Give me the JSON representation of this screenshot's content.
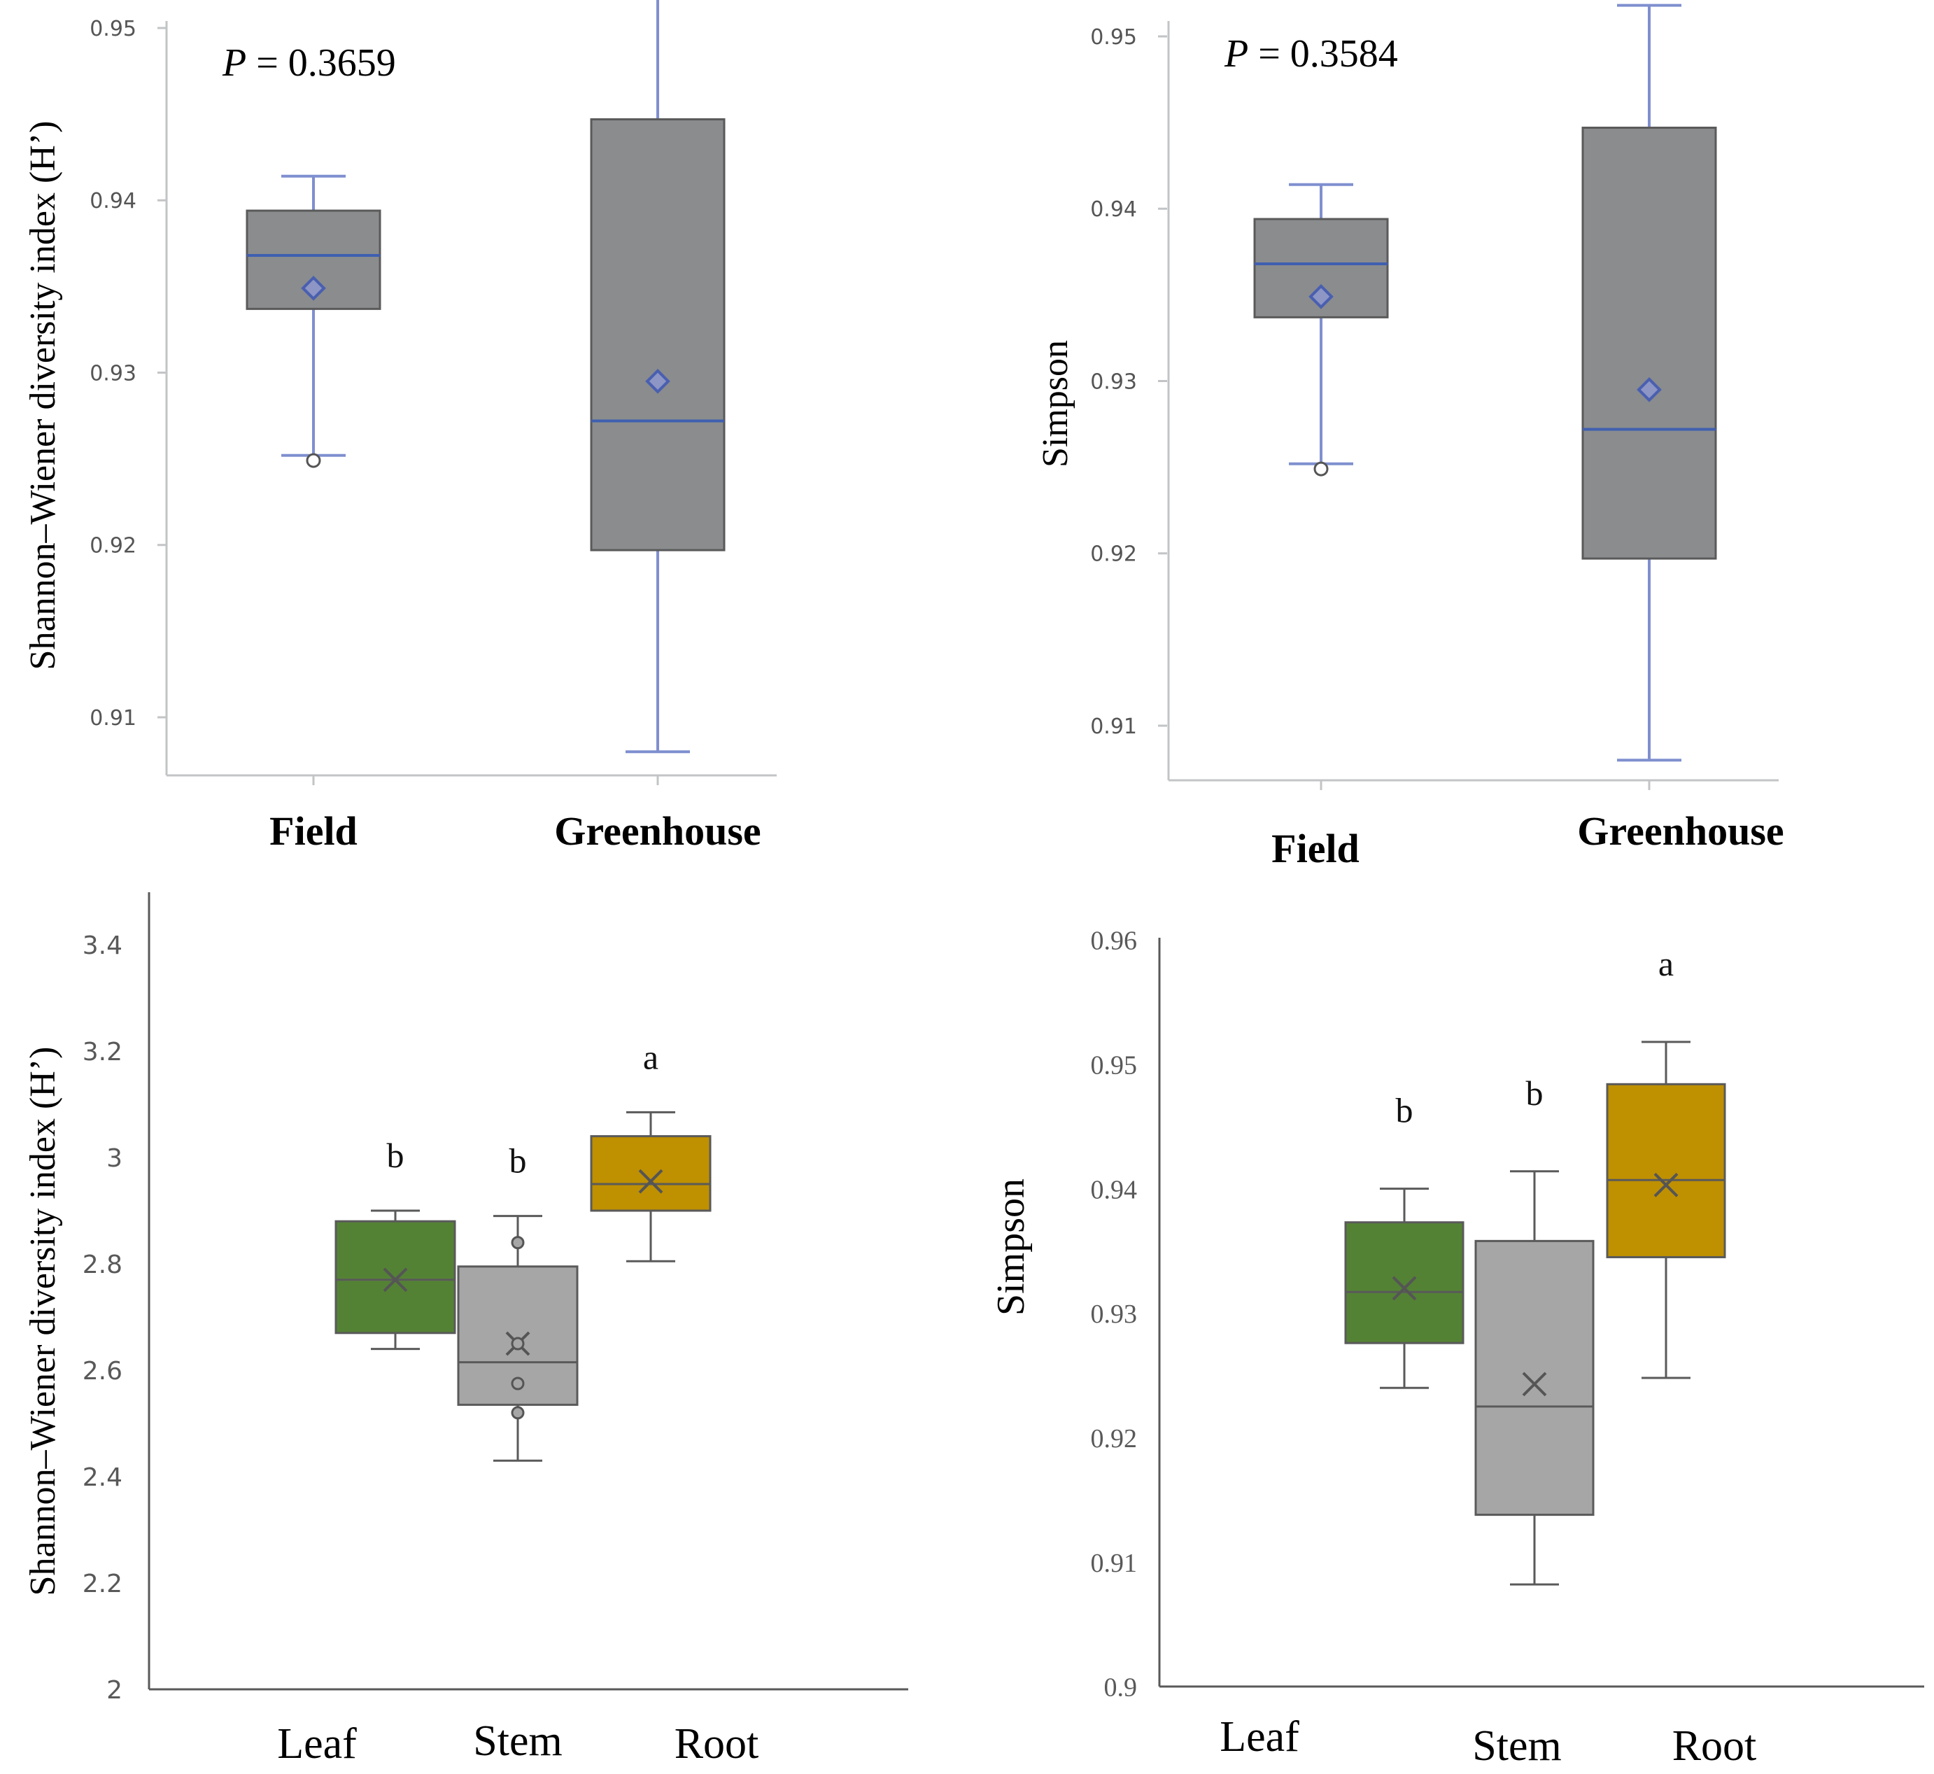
{
  "colors": {
    "top_box": "#8a8c8e",
    "top_whisker": "#7f8fcf",
    "top_median": "#3f5fb0",
    "top_axis": "#c2c4c6",
    "leaf": "#548235",
    "stem": "#a6a6a6",
    "root": "#bf9000",
    "bottom_stroke": "#5a5a5a"
  },
  "chart_data": [
    {
      "id": "shannon_location",
      "type": "box",
      "ylabel": "Shannon–Wiener diversity index (H’)",
      "annotation_prefix": "P",
      "annotation_value": " = 0.3659",
      "ylim": [
        0.9067,
        0.9518
      ],
      "yticks": [
        0.91,
        0.92,
        0.93,
        0.94,
        0.95
      ],
      "ytick_labels": [
        "0.91",
        "0.92",
        "0.93",
        "0.94",
        "0.95"
      ],
      "categories": [
        "Field",
        "Greenhouse"
      ],
      "boxes": [
        {
          "category": "Field",
          "min": 0.9252,
          "q1": 0.9337,
          "median": 0.9368,
          "q3": 0.9394,
          "max": 0.9414,
          "mean": 0.9349,
          "outliers": [
            0.9249
          ]
        },
        {
          "category": "Greenhouse",
          "min": 0.908,
          "q1": 0.9197,
          "median": 0.9272,
          "q3": 0.9447,
          "max": 0.9518,
          "mean": 0.9295,
          "outliers": []
        }
      ]
    },
    {
      "id": "simpson_location",
      "type": "box",
      "ylabel": "Simpson",
      "annotation_prefix": "P",
      "annotation_value": " = 0.3584",
      "ylim": [
        0.9067,
        0.9518
      ],
      "yticks": [
        0.91,
        0.92,
        0.93,
        0.94,
        0.95
      ],
      "ytick_labels": [
        "0.91",
        "0.92",
        "0.93",
        "0.94",
        "0.95"
      ],
      "categories": [
        "Field",
        "Greenhouse"
      ],
      "boxes": [
        {
          "category": "Field",
          "min": 0.9252,
          "q1": 0.9337,
          "median": 0.9368,
          "q3": 0.9394,
          "max": 0.9414,
          "mean": 0.9349,
          "outliers": [
            0.9249
          ]
        },
        {
          "category": "Greenhouse",
          "min": 0.908,
          "q1": 0.9197,
          "median": 0.9272,
          "q3": 0.9447,
          "max": 0.9518,
          "mean": 0.9295,
          "outliers": []
        }
      ]
    },
    {
      "id": "shannon_tissue",
      "type": "box",
      "ylabel": "Shannon–Wiener diversity index (H’)",
      "ylim": [
        2,
        3.5
      ],
      "yticks": [
        2,
        2.2,
        2.4,
        2.6,
        2.8,
        3,
        3.2,
        3.4
      ],
      "ytick_labels": [
        "2",
        "2.2",
        "2.4",
        "2.6",
        "2.8",
        "3",
        "3.2",
        "3.4"
      ],
      "categories": [
        "Leaf",
        "Stem",
        "Root"
      ],
      "boxes": [
        {
          "category": "Leaf",
          "min": 2.64,
          "q1": 2.67,
          "median": 2.77,
          "q3": 2.88,
          "max": 2.9,
          "mean": 2.77,
          "outliers": [],
          "letter": "b"
        },
        {
          "category": "Stem",
          "min": 2.43,
          "q1": 2.535,
          "median": 2.615,
          "q3": 2.795,
          "max": 2.89,
          "mean": 2.65,
          "outliers": [
            2.84,
            2.65,
            2.575,
            2.52
          ],
          "letter": "b"
        },
        {
          "category": "Root",
          "min": 2.805,
          "q1": 2.9,
          "median": 2.95,
          "q3": 3.04,
          "max": 3.085,
          "mean": 2.955,
          "outliers": [],
          "letter": "a"
        }
      ]
    },
    {
      "id": "simpson_tissue",
      "type": "box",
      "ylabel": "Simpson",
      "ylim": [
        0.9,
        0.96
      ],
      "yticks": [
        0.9,
        0.91,
        0.92,
        0.93,
        0.94,
        0.95,
        0.96
      ],
      "ytick_labels": [
        "0.9",
        "0.91",
        "0.92",
        "0.93",
        "0.94",
        "0.95",
        "0.96"
      ],
      "categories": [
        "Leaf",
        "Stem",
        "Root"
      ],
      "boxes": [
        {
          "category": "Leaf",
          "min": 0.924,
          "q1": 0.9276,
          "median": 0.9317,
          "q3": 0.9373,
          "max": 0.94,
          "mean": 0.932,
          "outliers": [],
          "letter": "b"
        },
        {
          "category": "Stem",
          "min": 0.9082,
          "q1": 0.9138,
          "median": 0.9225,
          "q3": 0.9358,
          "max": 0.9414,
          "mean": 0.9243,
          "outliers": [],
          "letter": "b"
        },
        {
          "category": "Root",
          "min": 0.9248,
          "q1": 0.9345,
          "median": 0.9407,
          "q3": 0.9484,
          "max": 0.9518,
          "mean": 0.9403,
          "outliers": [],
          "letter": "a"
        }
      ]
    }
  ]
}
